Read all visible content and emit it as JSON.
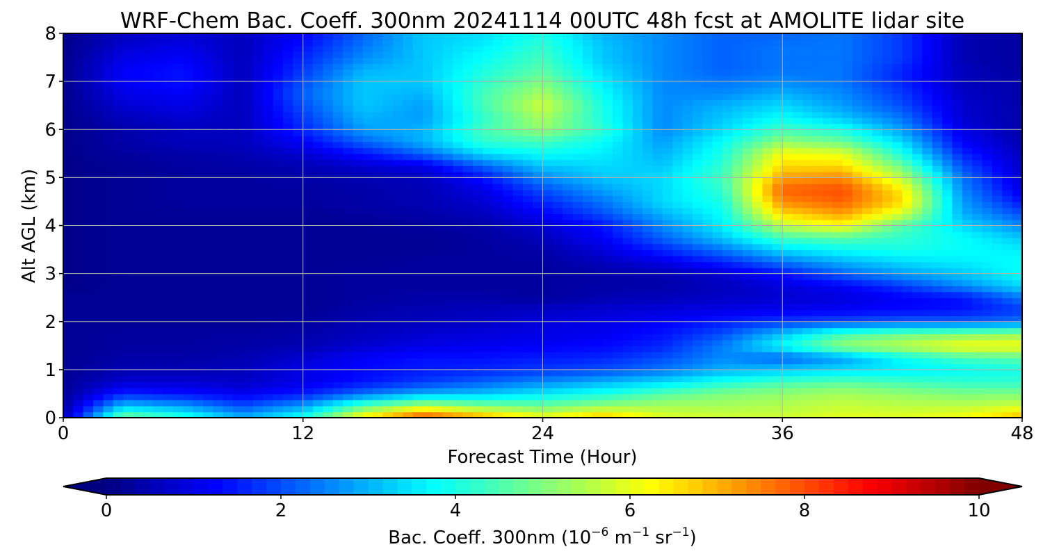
{
  "chart_data": {
    "type": "heatmap",
    "title": "WRF-Chem Bac. Coeff. 300nm  20241114 00UTC 48h fcst at AMOLITE lidar site",
    "xlabel": "Forecast Time (Hour)",
    "ylabel": "Alt AGL (km)",
    "xlim": [
      0,
      48
    ],
    "ylim": [
      0,
      8
    ],
    "xticks": [
      "0",
      "12",
      "24",
      "36",
      "48"
    ],
    "yticks": [
      "0",
      "1",
      "2",
      "3",
      "4",
      "5",
      "6",
      "7",
      "8"
    ],
    "grid": true,
    "colormap": "jet",
    "colorbar": {
      "orientation": "horizontal",
      "extend": "both",
      "range": [
        0,
        10
      ],
      "ticks": [
        "0",
        "2",
        "4",
        "6",
        "8",
        "10"
      ],
      "label_main": "Bac. Coeff. 300nm  (10",
      "label_exp1": "−6",
      "label_mid": " m",
      "label_exp2": "−1",
      "label_sr": " sr",
      "label_exp3": "−1",
      "label_end": ")"
    },
    "x": [
      0,
      3,
      6,
      9,
      12,
      15,
      18,
      21,
      24,
      27,
      30,
      33,
      36,
      39,
      42,
      45,
      48
    ],
    "y": [
      0,
      0.25,
      0.5,
      0.75,
      1,
      1.25,
      1.5,
      1.75,
      2,
      2.25,
      2.5,
      2.75,
      3,
      3.25,
      3.5,
      3.75,
      4,
      4.25,
      4.5,
      4.75,
      5,
      5.25,
      5.5,
      5.75,
      6,
      6.25,
      6.5,
      6.75,
      7,
      7.25,
      7.5,
      7.75,
      8
    ],
    "values": [
      [
        0.5,
        5.0,
        4.2,
        3.0,
        4.0,
        6.5,
        8.2,
        7.2,
        6.2,
        7.0,
        6.0,
        5.8,
        5.8,
        6.0,
        6.0,
        6.2,
        7.0
      ],
      [
        0.3,
        3.2,
        2.8,
        2.0,
        2.8,
        4.6,
        5.6,
        5.0,
        4.8,
        5.2,
        5.4,
        5.4,
        5.5,
        5.7,
        5.6,
        5.6,
        5.8
      ],
      [
        0.2,
        1.6,
        1.4,
        1.1,
        1.5,
        2.4,
        3.0,
        3.2,
        3.6,
        4.0,
        4.6,
        5.0,
        5.2,
        5.4,
        5.2,
        5.0,
        5.0
      ],
      [
        0.2,
        0.8,
        0.8,
        0.7,
        1.0,
        1.4,
        1.8,
        2.2,
        2.6,
        3.0,
        3.4,
        4.0,
        4.4,
        4.6,
        4.4,
        4.2,
        4.2
      ],
      [
        0.2,
        0.5,
        0.5,
        0.6,
        1.0,
        1.3,
        1.5,
        1.6,
        1.8,
        2.0,
        2.4,
        3.0,
        3.2,
        3.4,
        3.6,
        3.8,
        4.0
      ],
      [
        0.2,
        0.4,
        0.4,
        0.5,
        0.8,
        1.2,
        1.4,
        1.4,
        1.5,
        1.6,
        2.0,
        2.6,
        2.2,
        2.8,
        3.8,
        4.4,
        4.6
      ],
      [
        0.2,
        0.3,
        0.3,
        0.4,
        0.5,
        0.8,
        1.0,
        1.1,
        1.2,
        1.3,
        1.6,
        2.5,
        3.8,
        5.2,
        5.6,
        6.2,
        6.2
      ],
      [
        0.2,
        0.3,
        0.3,
        0.3,
        0.4,
        0.6,
        0.8,
        0.9,
        1.0,
        1.1,
        1.4,
        2.0,
        3.2,
        4.4,
        4.8,
        5.0,
        5.2
      ],
      [
        0.2,
        0.2,
        0.2,
        0.2,
        0.3,
        0.5,
        0.6,
        0.7,
        0.9,
        1.0,
        1.2,
        1.5,
        1.8,
        2.0,
        2.2,
        2.2,
        2.4
      ],
      [
        0.2,
        0.2,
        0.2,
        0.2,
        0.2,
        0.4,
        0.5,
        0.6,
        0.7,
        0.8,
        0.9,
        1.0,
        1.1,
        1.2,
        1.3,
        1.4,
        1.8
      ],
      [
        0.2,
        0.2,
        0.2,
        0.2,
        0.2,
        0.3,
        0.4,
        0.4,
        0.3,
        0.5,
        0.6,
        0.7,
        0.8,
        0.9,
        1.2,
        1.4,
        2.4
      ],
      [
        0.1,
        0.2,
        0.2,
        0.2,
        0.2,
        0.3,
        0.3,
        0.3,
        0.3,
        0.4,
        0.4,
        0.6,
        0.9,
        1.2,
        1.8,
        2.6,
        3.4
      ],
      [
        0.1,
        0.2,
        0.2,
        0.2,
        0.2,
        0.3,
        0.3,
        0.3,
        0.3,
        0.4,
        0.5,
        0.8,
        1.4,
        2.2,
        2.8,
        3.2,
        3.8
      ],
      [
        0.1,
        0.2,
        0.2,
        0.2,
        0.2,
        0.2,
        0.3,
        0.3,
        0.3,
        0.6,
        1.0,
        1.6,
        2.4,
        3.0,
        3.4,
        3.6,
        3.8
      ],
      [
        0.1,
        0.2,
        0.2,
        0.2,
        0.2,
        0.2,
        0.2,
        0.3,
        0.4,
        0.9,
        1.6,
        2.4,
        3.4,
        3.8,
        4.0,
        3.8,
        3.6
      ],
      [
        0.1,
        0.2,
        0.2,
        0.2,
        0.2,
        0.2,
        0.2,
        0.3,
        0.6,
        1.2,
        2.2,
        3.2,
        4.4,
        4.6,
        4.2,
        3.8,
        3.2
      ],
      [
        0.1,
        0.2,
        0.2,
        0.2,
        0.2,
        0.2,
        0.3,
        0.4,
        0.8,
        1.4,
        2.6,
        3.6,
        5.6,
        6.2,
        4.6,
        3.4,
        2.6
      ],
      [
        0.1,
        0.2,
        0.2,
        0.2,
        0.2,
        0.3,
        0.4,
        0.6,
        1.2,
        2.0,
        3.0,
        3.8,
        6.6,
        7.2,
        5.8,
        3.0,
        2.0
      ],
      [
        0.1,
        0.2,
        0.3,
        0.3,
        0.3,
        0.4,
        0.5,
        0.8,
        1.6,
        2.4,
        3.4,
        4.0,
        7.4,
        7.8,
        6.6,
        2.8,
        1.4
      ],
      [
        0.1,
        0.2,
        0.3,
        0.3,
        0.3,
        0.4,
        0.5,
        1.0,
        2.0,
        2.8,
        3.4,
        4.2,
        7.8,
        8.0,
        6.4,
        2.6,
        1.0
      ],
      [
        0.1,
        0.2,
        0.3,
        0.3,
        0.4,
        0.5,
        0.6,
        1.4,
        2.6,
        3.2,
        3.4,
        4.4,
        7.2,
        7.4,
        5.6,
        2.4,
        0.8
      ],
      [
        0.1,
        0.2,
        0.3,
        0.4,
        0.5,
        0.8,
        1.0,
        2.2,
        3.2,
        3.4,
        3.2,
        4.2,
        6.6,
        6.6,
        4.8,
        2.0,
        0.7
      ],
      [
        0.1,
        0.3,
        0.4,
        0.5,
        0.8,
        1.4,
        2.2,
        3.4,
        3.8,
        3.6,
        3.0,
        4.0,
        6.2,
        6.0,
        4.0,
        1.6,
        0.6
      ],
      [
        0.1,
        0.4,
        0.6,
        0.6,
        1.2,
        2.2,
        3.0,
        4.2,
        4.4,
        3.8,
        2.8,
        3.8,
        5.2,
        4.8,
        3.4,
        1.2,
        0.5
      ],
      [
        0.1,
        0.4,
        0.6,
        0.6,
        1.6,
        2.8,
        3.0,
        4.4,
        5.2,
        4.2,
        2.6,
        3.4,
        4.4,
        4.0,
        2.8,
        1.0,
        0.4
      ],
      [
        0.1,
        0.6,
        0.8,
        0.6,
        1.8,
        3.0,
        2.8,
        4.2,
        5.4,
        4.0,
        2.6,
        3.2,
        3.8,
        3.2,
        2.4,
        0.8,
        0.4
      ],
      [
        0.1,
        0.8,
        1.0,
        0.6,
        2.0,
        3.2,
        2.8,
        4.4,
        5.8,
        4.0,
        2.6,
        3.0,
        3.4,
        2.8,
        2.0,
        0.8,
        0.4
      ],
      [
        0.1,
        1.0,
        1.2,
        0.6,
        2.2,
        3.2,
        3.0,
        4.4,
        5.4,
        3.8,
        2.6,
        2.6,
        3.0,
        2.6,
        1.8,
        0.7,
        0.4
      ],
      [
        0.1,
        1.2,
        1.4,
        0.6,
        2.0,
        3.2,
        3.2,
        4.2,
        5.0,
        3.6,
        2.6,
        2.4,
        2.6,
        2.4,
        1.6,
        0.6,
        0.4
      ],
      [
        0.1,
        1.2,
        1.4,
        0.6,
        1.8,
        3.0,
        3.2,
        4.0,
        4.6,
        3.4,
        2.6,
        2.2,
        2.4,
        2.4,
        1.6,
        0.6,
        0.3
      ],
      [
        0.1,
        1.0,
        1.2,
        0.6,
        1.6,
        2.6,
        3.2,
        3.8,
        4.4,
        3.2,
        2.6,
        2.2,
        2.4,
        2.4,
        1.8,
        0.5,
        0.3
      ],
      [
        0.1,
        0.8,
        1.0,
        0.6,
        1.4,
        2.4,
        3.2,
        3.6,
        4.2,
        3.2,
        2.6,
        2.2,
        2.4,
        2.4,
        1.8,
        0.5,
        0.3
      ],
      [
        0.1,
        0.6,
        0.8,
        0.6,
        1.2,
        2.2,
        3.2,
        3.4,
        4.0,
        3.0,
        2.6,
        2.2,
        2.2,
        2.4,
        1.8,
        0.5,
        0.3
      ]
    ]
  }
}
